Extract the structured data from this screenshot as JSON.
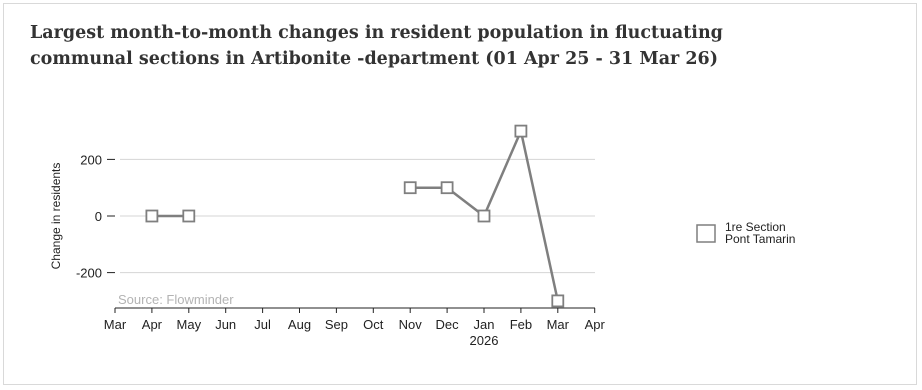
{
  "chart_data": {
    "type": "line",
    "title": "Largest month-to-month changes in resident population in fluctuating communal sections in Artibonite -department (01 Apr 25 - 31 Mar 26)",
    "ylabel": "Change in residents",
    "xlabel": "",
    "source": "Source: Flowminder",
    "x_ticks": [
      "Mar",
      "Apr",
      "May",
      "Jun",
      "Jul",
      "Aug",
      "Sep",
      "Oct",
      "Nov",
      "Dec",
      "Jan",
      "Feb",
      "Mar",
      "Apr"
    ],
    "x_year_label": "2026",
    "x_range": [
      "2025-03",
      "2026-04"
    ],
    "y_ticks": [
      200,
      0,
      -200
    ],
    "y_tick_labels": [
      "200",
      "0",
      "-200"
    ],
    "ylim": [
      -300,
      300
    ],
    "grid": true,
    "legend_position": "right",
    "series": [
      {
        "name": "1re Section Pont Tamarin",
        "color": "#7f7f7f",
        "marker": "open-square",
        "points": [
          {
            "x": "2025-04",
            "y": 0
          },
          {
            "x": "2025-05",
            "y": 0
          },
          {
            "x": "2025-06",
            "y": null
          },
          {
            "x": "2025-07",
            "y": null
          },
          {
            "x": "2025-08",
            "y": null
          },
          {
            "x": "2025-09",
            "y": null
          },
          {
            "x": "2025-10",
            "y": null
          },
          {
            "x": "2025-11",
            "y": 100
          },
          {
            "x": "2025-12",
            "y": 100
          },
          {
            "x": "2026-01",
            "y": 0
          },
          {
            "x": "2026-02",
            "y": 300
          },
          {
            "x": "2026-03",
            "y": -300
          }
        ]
      }
    ],
    "legend": {
      "label_lines": [
        "1re Section",
        "Pont Tamarin"
      ]
    }
  }
}
